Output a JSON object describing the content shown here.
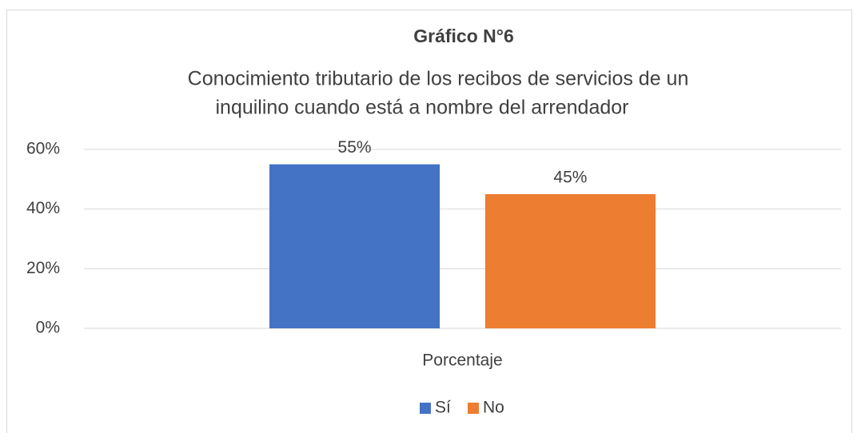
{
  "chart_data": {
    "type": "bar",
    "title": "Gráfico N°6",
    "subtitle": [
      "Conocimiento tributario de los recibos de servicios de un",
      "inquilino cuando está a nombre del arrendador"
    ],
    "categories": [
      "Porcentaje"
    ],
    "series": [
      {
        "name": "Sí",
        "color": "#4472c4",
        "values": [
          55
        ],
        "value_labels": [
          "55%"
        ]
      },
      {
        "name": "No",
        "color": "#ed7d31",
        "values": [
          45
        ],
        "value_labels": [
          "45%"
        ]
      }
    ],
    "ylim": [
      0,
      60
    ],
    "yticks": [
      {
        "value": 0,
        "label": "0%"
      },
      {
        "value": 20,
        "label": "20%"
      },
      {
        "value": 40,
        "label": "40%"
      },
      {
        "value": 60,
        "label": "60%"
      }
    ],
    "grid": true,
    "legend": "bottom"
  }
}
